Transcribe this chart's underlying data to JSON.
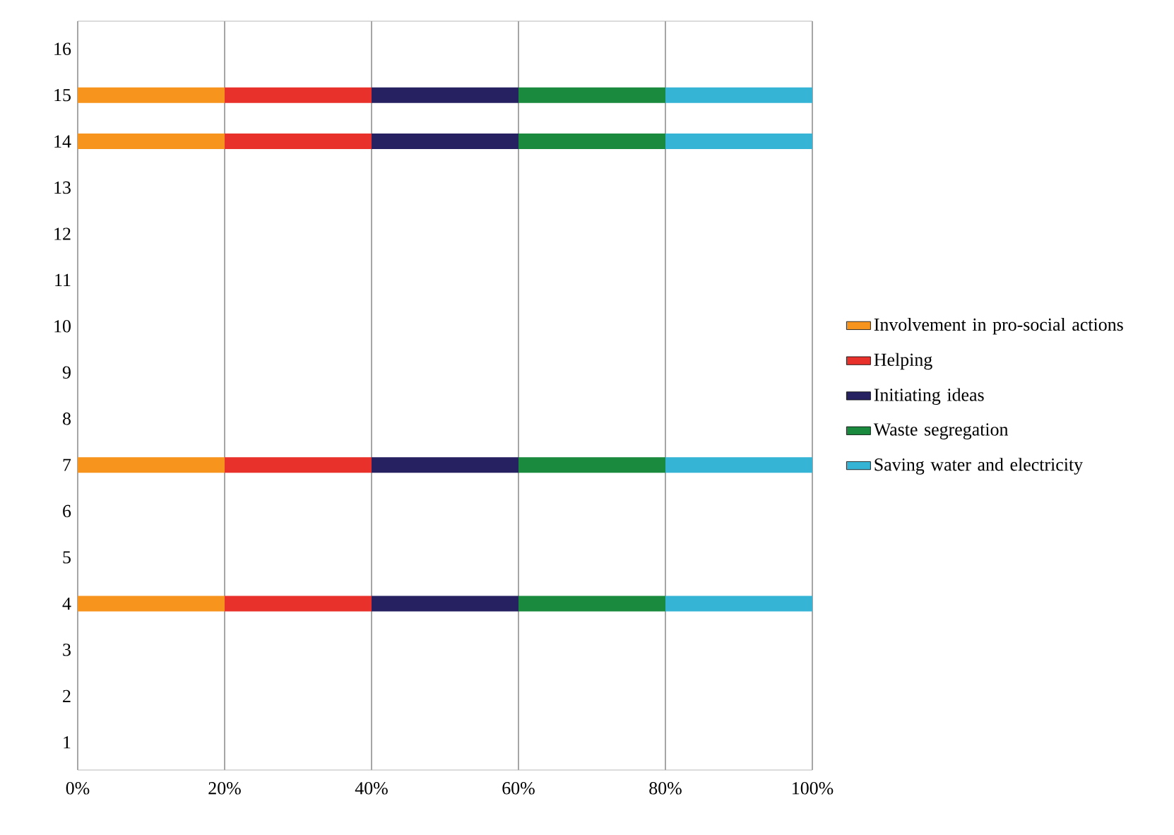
{
  "chart_data": {
    "type": "bar",
    "orientation": "horizontal",
    "stacked": true,
    "categories": [
      "16",
      "15",
      "14",
      "13",
      "12",
      "11",
      "10",
      "9",
      "8",
      "7",
      "6",
      "5",
      "4",
      "3",
      "2",
      "1"
    ],
    "series": [
      {
        "name": "Involvement in pro-social actions",
        "color": "#f7941d",
        "values": [
          0,
          20,
          20,
          0,
          0,
          0,
          0,
          0,
          0,
          20,
          0,
          0,
          20,
          0,
          0,
          0
        ]
      },
      {
        "name": "Helping",
        "color": "#e8312a",
        "values": [
          0,
          20,
          20,
          0,
          0,
          0,
          0,
          0,
          0,
          20,
          0,
          0,
          20,
          0,
          0,
          0
        ]
      },
      {
        "name": "Initiating ideas",
        "color": "#262262",
        "values": [
          0,
          20,
          20,
          0,
          0,
          0,
          0,
          0,
          0,
          20,
          0,
          0,
          20,
          0,
          0,
          0
        ]
      },
      {
        "name": "Waste segregation",
        "color": "#1a8a3e",
        "values": [
          0,
          20,
          20,
          0,
          0,
          0,
          0,
          0,
          0,
          20,
          0,
          0,
          20,
          0,
          0,
          0
        ]
      },
      {
        "name": "Saving water and electricity",
        "color": "#36b4d6",
        "values": [
          0,
          20,
          20,
          0,
          0,
          0,
          0,
          0,
          0,
          20,
          0,
          0,
          20,
          0,
          0,
          0
        ]
      }
    ],
    "xlim": [
      0,
      100
    ],
    "xticks": [
      {
        "value": 0,
        "label": "0%"
      },
      {
        "value": 20,
        "label": "20%"
      },
      {
        "value": 40,
        "label": "40%"
      },
      {
        "value": 60,
        "label": "60%"
      },
      {
        "value": 80,
        "label": "80%"
      },
      {
        "value": 100,
        "label": "100%"
      }
    ],
    "grid": "x",
    "legend": "right"
  }
}
